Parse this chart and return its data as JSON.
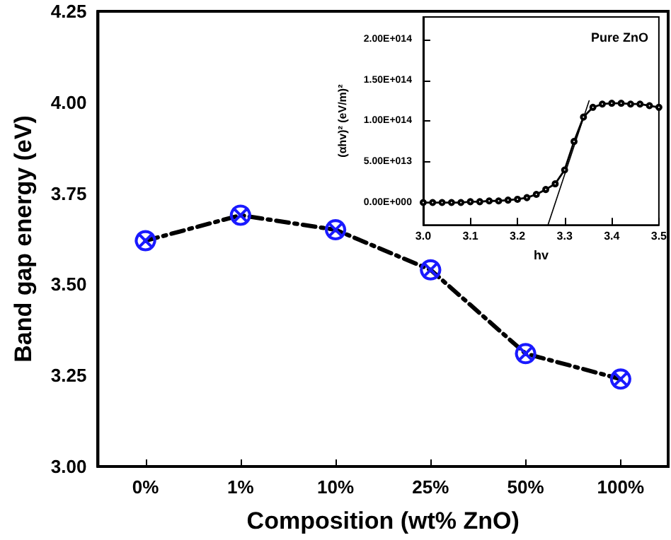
{
  "chart_data": [
    {
      "type": "line",
      "xlabel": "Composition (wt% ZnO)",
      "ylabel": "Band gap energy (eV)",
      "categories": [
        "0%",
        "1%",
        "10%",
        "25%",
        "50%",
        "100%"
      ],
      "series": [
        {
          "color": "#1a1aff",
          "values": [
            3.62,
            3.69,
            3.65,
            3.54,
            3.31,
            3.24
          ]
        }
      ],
      "ylim": [
        3,
        4.25
      ],
      "yticks": [
        {
          "value": 3,
          "label": "3.00"
        },
        {
          "value": 3.25,
          "label": "3.25"
        },
        {
          "value": 3.5,
          "label": "3.50"
        },
        {
          "value": 3.75,
          "label": "3.75"
        },
        {
          "value": 4,
          "label": "4.00"
        },
        {
          "value": 4.25,
          "label": "4.25"
        }
      ],
      "grid": false,
      "marker": "cross",
      "line_style": "dashed"
    },
    {
      "type": "line",
      "xlabel": "hv",
      "ylabel": "(αhv)² (eV/m)²",
      "annotations": [
        "Pure ZnO"
      ],
      "series": [
        {
          "color": "#000000",
          "x": [
            3.0,
            3.02,
            3.04,
            3.06,
            3.08,
            3.1,
            3.12,
            3.14,
            3.16,
            3.18,
            3.2,
            3.22,
            3.24,
            3.26,
            3.28,
            3.3,
            3.32,
            3.34,
            3.36,
            3.38,
            3.4,
            3.42,
            3.44,
            3.46,
            3.48,
            3.5
          ],
          "values": [
            0,
            0,
            0,
            0,
            0,
            1000000000000.0,
            1000000000000.0,
            2000000000000.0,
            2000000000000.0,
            3000000000000.0,
            4000000000000.0,
            6000000000000.0,
            10000000000000.0,
            16000000000000.0,
            23000000000000.0,
            40000000000000.0,
            75000000000000.0,
            105000000000000.0,
            117000000000000.0,
            121000000000000.0,
            122000000000000.0,
            122000000000000.0,
            121000000000000.0,
            121000000000000.0,
            119000000000000.0,
            117000000000000.0
          ]
        },
        {
          "color": "#000000",
          "type": "line",
          "marker": "none",
          "x": [
            3.265,
            3.352
          ],
          "values": [
            -27000000000000.0,
            125000000000000.0
          ]
        }
      ],
      "xlim": [
        3.0,
        3.5
      ],
      "xticks": [
        {
          "value": 3.0,
          "label": "3.0"
        },
        3.1,
        3.2,
        3.3,
        3.4,
        3.5
      ],
      "ylim": [
        -27500000000000.0,
        228000000000000.0
      ],
      "yticks": [
        {
          "value": 0,
          "label": "0.00E+000"
        },
        {
          "value": 50000000000000.0,
          "label": "5.00E+013"
        },
        {
          "value": 100000000000000.0,
          "label": "1.00E+014"
        },
        {
          "value": 150000000000000.0,
          "label": "1.50E+014"
        },
        {
          "value": 200000000000000.0,
          "label": "2.00E+014"
        }
      ],
      "grid": false,
      "marker": "circle",
      "line_style": "solid"
    }
  ]
}
